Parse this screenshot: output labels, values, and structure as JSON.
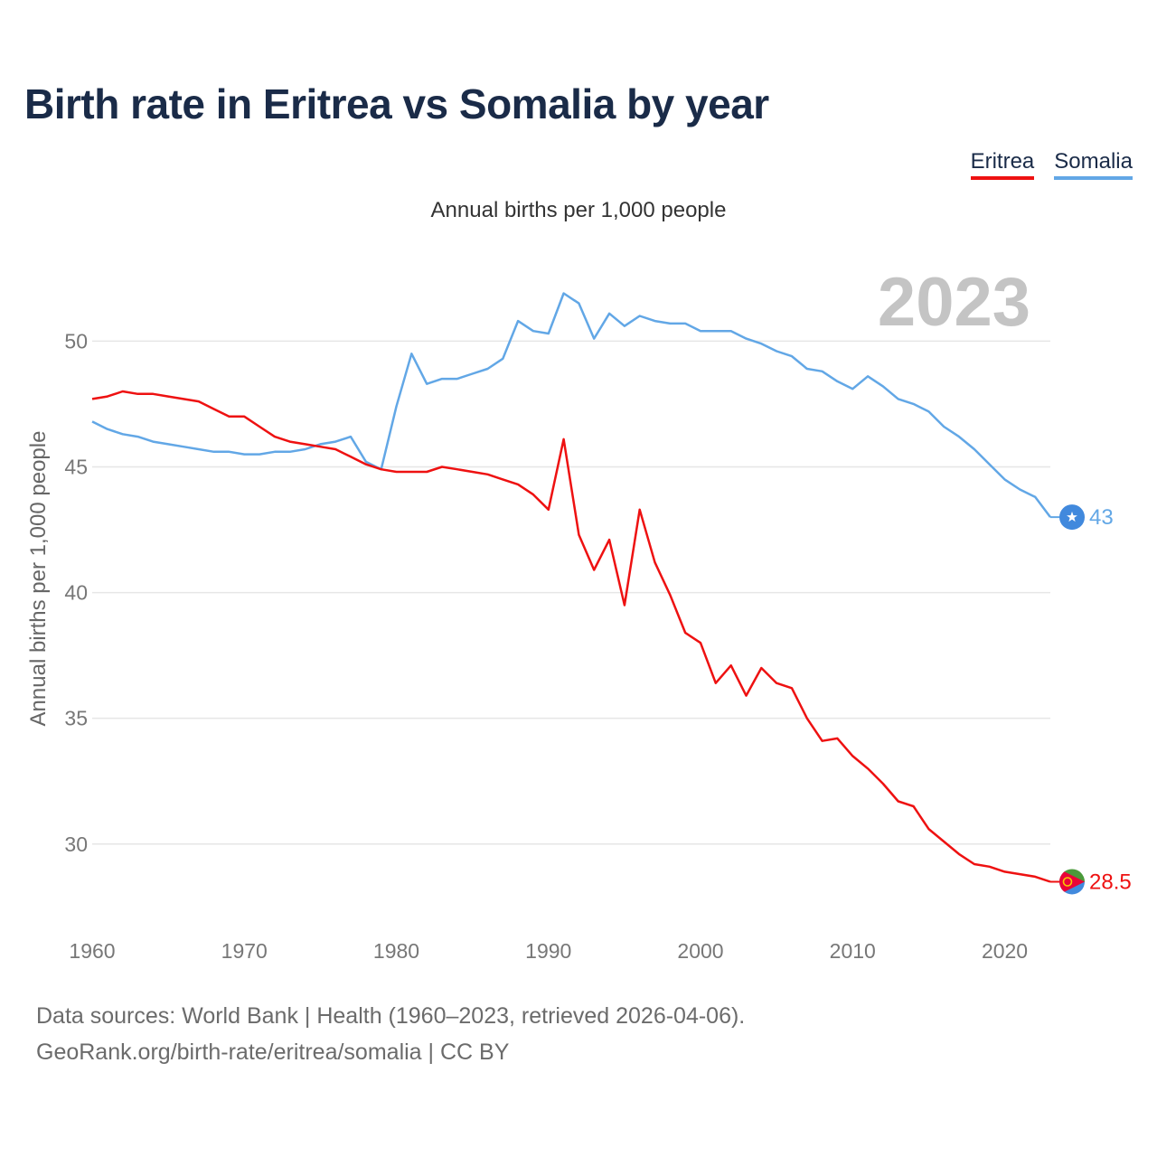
{
  "colors": {
    "eritrea": "#ee1111",
    "somalia": "#62a7e6",
    "title": "#1a2b48",
    "grid": "#e6e6e6",
    "axis_text": "#777777",
    "year_watermark": "#c4c4c4"
  },
  "footer": {
    "line1": "Data sources: World Bank | Health (1960–2023, retrieved 2026-04-06).",
    "line2": "GeoRank.org/birth-rate/eritrea/somalia | CC BY"
  },
  "chart_data": {
    "type": "line",
    "title": "Birth rate in Eritrea vs Somalia by year",
    "subtitle": "Annual births per 1,000 people",
    "ylabel": "Annual births per 1,000 people",
    "xlabel": "",
    "year_label": "2023",
    "xlim": [
      1960,
      2023
    ],
    "ylim": [
      26.9,
      53.5
    ],
    "xticks": [
      1960,
      1970,
      1980,
      1990,
      2000,
      2010,
      2020
    ],
    "yticks": [
      30,
      35,
      40,
      45,
      50
    ],
    "grid": true,
    "legend_position": "top-right",
    "x": [
      1960,
      1961,
      1962,
      1963,
      1964,
      1965,
      1966,
      1967,
      1968,
      1969,
      1970,
      1971,
      1972,
      1973,
      1974,
      1975,
      1976,
      1977,
      1978,
      1979,
      1980,
      1981,
      1982,
      1983,
      1984,
      1985,
      1986,
      1987,
      1988,
      1989,
      1990,
      1991,
      1992,
      1993,
      1994,
      1995,
      1996,
      1997,
      1998,
      1999,
      2000,
      2001,
      2002,
      2003,
      2004,
      2005,
      2006,
      2007,
      2008,
      2009,
      2010,
      2011,
      2012,
      2013,
      2014,
      2015,
      2016,
      2017,
      2018,
      2019,
      2020,
      2021,
      2022,
      2023
    ],
    "series": [
      {
        "name": "Eritrea",
        "color": "#ee1111",
        "end_label": "28.5",
        "values": [
          47.7,
          47.8,
          48.0,
          47.9,
          47.9,
          47.8,
          47.7,
          47.6,
          47.3,
          47.0,
          47.0,
          46.6,
          46.2,
          46.0,
          45.9,
          45.8,
          45.7,
          45.4,
          45.1,
          44.9,
          44.8,
          44.8,
          44.8,
          45.0,
          44.9,
          44.8,
          44.7,
          44.5,
          44.3,
          43.9,
          43.3,
          46.1,
          42.3,
          40.9,
          42.1,
          39.5,
          43.3,
          41.2,
          39.9,
          38.4,
          38.0,
          36.4,
          37.1,
          35.9,
          37.0,
          36.4,
          36.2,
          35.0,
          34.1,
          34.2,
          33.5,
          33.0,
          32.4,
          31.7,
          31.5,
          30.6,
          30.1,
          29.6,
          29.2,
          29.1,
          28.9,
          28.8,
          28.7,
          28.5
        ]
      },
      {
        "name": "Somalia",
        "color": "#62a7e6",
        "end_label": "43",
        "values": [
          46.8,
          46.5,
          46.3,
          46.2,
          46.0,
          45.9,
          45.8,
          45.7,
          45.6,
          45.6,
          45.5,
          45.5,
          45.6,
          45.6,
          45.7,
          45.9,
          46.0,
          46.2,
          45.2,
          44.9,
          47.4,
          49.5,
          48.3,
          48.5,
          48.5,
          48.7,
          48.9,
          49.3,
          50.8,
          50.4,
          50.3,
          51.9,
          51.5,
          50.1,
          51.1,
          50.6,
          51.0,
          50.8,
          50.7,
          50.7,
          50.4,
          50.4,
          50.4,
          50.1,
          49.9,
          49.6,
          49.4,
          48.9,
          48.8,
          48.4,
          48.1,
          48.6,
          48.2,
          47.7,
          47.5,
          47.2,
          46.6,
          46.2,
          45.7,
          45.1,
          44.5,
          44.1,
          43.8,
          43.0
        ]
      }
    ]
  }
}
